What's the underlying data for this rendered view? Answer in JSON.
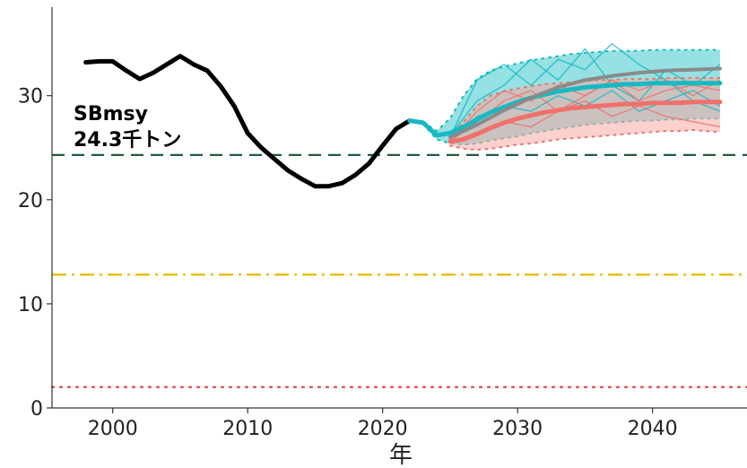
{
  "chart_data": {
    "type": "line",
    "title": "",
    "xlabel": "年",
    "ylabel": "",
    "xlim": [
      1995.5,
      2047
    ],
    "ylim": [
      0,
      38.5
    ],
    "x_ticks": [
      2000,
      2010,
      2020,
      2030,
      2040
    ],
    "y_ticks": [
      0,
      10,
      20,
      30
    ],
    "grid": false,
    "legend": "none",
    "annotation": {
      "line1": "SBmsy",
      "line2": "24.3千トン"
    },
    "reference_lines": [
      {
        "name": "SBmsy",
        "y": 24.3,
        "style": "dashed",
        "color": "#1f5c3a"
      },
      {
        "y": 12.8,
        "style": "dashdot",
        "color": "#e6b800"
      },
      {
        "y": 2.0,
        "style": "dotted",
        "color": "#e0453a"
      }
    ],
    "series": [
      {
        "style": "historical",
        "color": "#000000",
        "x": [
          1998,
          1999,
          2000,
          2001,
          2002,
          2003,
          2004,
          2005,
          2006,
          2007,
          2008,
          2009,
          2010,
          2011,
          2012,
          2013,
          2014,
          2015,
          2016,
          2017,
          2018,
          2019,
          2020,
          2021,
          2022
        ],
        "y": [
          33.2,
          33.3,
          33.3,
          32.4,
          31.6,
          32.2,
          33.0,
          33.8,
          33.0,
          32.4,
          30.9,
          29.0,
          26.4,
          25.0,
          23.9,
          22.8,
          22.0,
          21.3,
          21.3,
          21.6,
          22.4,
          23.5,
          25.2,
          26.8,
          27.6
        ]
      },
      {
        "style": "projection",
        "color": "#17b9c2",
        "band_color": "#3ec8cc",
        "x": [
          2022,
          2023,
          2024,
          2025,
          2026,
          2027,
          2028,
          2029,
          2030,
          2031,
          2032,
          2033,
          2034,
          2035,
          2036,
          2037,
          2038,
          2039,
          2040,
          2041,
          2042,
          2043,
          2044,
          2045
        ],
        "y": [
          27.6,
          27.4,
          26.2,
          26.4,
          27.0,
          27.7,
          28.4,
          28.9,
          29.4,
          29.8,
          30.1,
          30.4,
          30.6,
          30.8,
          30.9,
          31.0,
          31.1,
          31.1,
          31.2,
          31.2,
          31.2,
          31.2,
          31.2,
          31.2
        ],
        "band_upper": [
          27.6,
          27.5,
          26.6,
          27.8,
          30.0,
          31.6,
          32.4,
          32.8,
          33.1,
          33.4,
          33.6,
          33.8,
          34.0,
          34.1,
          34.2,
          34.3,
          34.3,
          34.3,
          34.4,
          34.4,
          34.4,
          34.4,
          34.4,
          34.4
        ],
        "band_lower": [
          27.6,
          27.3,
          25.8,
          25.4,
          25.3,
          25.4,
          25.7,
          25.9,
          26.1,
          26.4,
          26.6,
          26.8,
          27.0,
          27.2,
          27.3,
          27.4,
          27.5,
          27.6,
          27.6,
          27.7,
          27.7,
          27.8,
          27.8,
          27.8
        ]
      },
      {
        "style": "projection",
        "color": "#f0706a",
        "band_color": "#f8a9a4",
        "x": [
          2025,
          2026,
          2027,
          2028,
          2029,
          2030,
          2031,
          2032,
          2033,
          2034,
          2035,
          2036,
          2037,
          2038,
          2039,
          2040,
          2041,
          2042,
          2043,
          2044,
          2045
        ],
        "y": [
          25.6,
          25.8,
          26.3,
          26.9,
          27.4,
          27.8,
          28.1,
          28.4,
          28.6,
          28.8,
          28.9,
          29.0,
          29.1,
          29.2,
          29.2,
          29.3,
          29.3,
          29.3,
          29.4,
          29.4,
          29.4
        ],
        "band_upper": [
          26.0,
          27.5,
          29.0,
          30.0,
          30.4,
          30.7,
          30.9,
          31.1,
          31.2,
          31.3,
          31.4,
          31.5,
          31.5,
          31.6,
          31.6,
          31.6,
          31.7,
          31.7,
          31.7,
          31.7,
          31.7
        ],
        "band_lower": [
          25.2,
          24.9,
          24.8,
          24.9,
          25.1,
          25.3,
          25.4,
          25.6,
          25.8,
          25.9,
          26.0,
          26.1,
          26.2,
          26.3,
          26.4,
          26.5,
          26.6,
          26.6,
          26.7,
          26.6,
          26.5
        ]
      },
      {
        "style": "median",
        "color": "#8a8a8a",
        "x": [
          2025,
          2027,
          2029,
          2031,
          2033,
          2035,
          2037,
          2039,
          2041,
          2043,
          2045
        ],
        "y": [
          26.0,
          27.2,
          28.6,
          29.8,
          30.8,
          31.5,
          31.9,
          32.2,
          32.4,
          32.5,
          32.6
        ]
      }
    ],
    "sample_traces": [
      {
        "color": "#17b9c2",
        "x": [
          2025,
          2027,
          2029,
          2031,
          2033,
          2035,
          2037,
          2039,
          2041,
          2043,
          2045
        ],
        "y": [
          26.0,
          31.5,
          33.0,
          31.0,
          33.5,
          32.5,
          35.0,
          33.0,
          31.5,
          29.5,
          28.5
        ]
      },
      {
        "color": "#17b9c2",
        "x": [
          2025,
          2027,
          2029,
          2031,
          2033,
          2035,
          2037,
          2039,
          2041,
          2043,
          2045
        ],
        "y": [
          26.2,
          29.5,
          31.0,
          33.5,
          31.5,
          34.5,
          31.0,
          29.5,
          32.5,
          31.0,
          33.0
        ]
      },
      {
        "color": "#17b9c2",
        "x": [
          2025,
          2027,
          2029,
          2031,
          2033,
          2035,
          2037,
          2039,
          2041,
          2043,
          2045
        ],
        "y": [
          25.8,
          28.0,
          29.0,
          28.5,
          30.0,
          29.0,
          30.5,
          28.5,
          29.5,
          30.5,
          29.0
        ]
      },
      {
        "color": "#f0706a",
        "x": [
          2025,
          2027,
          2029,
          2031,
          2033,
          2035,
          2037,
          2039,
          2041,
          2043,
          2045
        ],
        "y": [
          25.6,
          27.5,
          29.5,
          30.5,
          28.5,
          30.0,
          31.5,
          29.5,
          30.5,
          31.0,
          30.5
        ]
      },
      {
        "color": "#f0706a",
        "x": [
          2025,
          2027,
          2029,
          2031,
          2033,
          2035,
          2037,
          2039,
          2041,
          2043,
          2045
        ],
        "y": [
          25.5,
          26.5,
          27.5,
          27.0,
          28.5,
          29.5,
          28.0,
          29.0,
          28.0,
          27.5,
          27.0
        ]
      },
      {
        "color": "#f0706a",
        "x": [
          2025,
          2027,
          2029,
          2031,
          2033,
          2035,
          2037,
          2039,
          2041,
          2043,
          2045
        ],
        "y": [
          25.7,
          28.5,
          30.5,
          29.5,
          31.0,
          30.0,
          31.5,
          30.5,
          31.5,
          30.0,
          31.5
        ]
      }
    ]
  }
}
